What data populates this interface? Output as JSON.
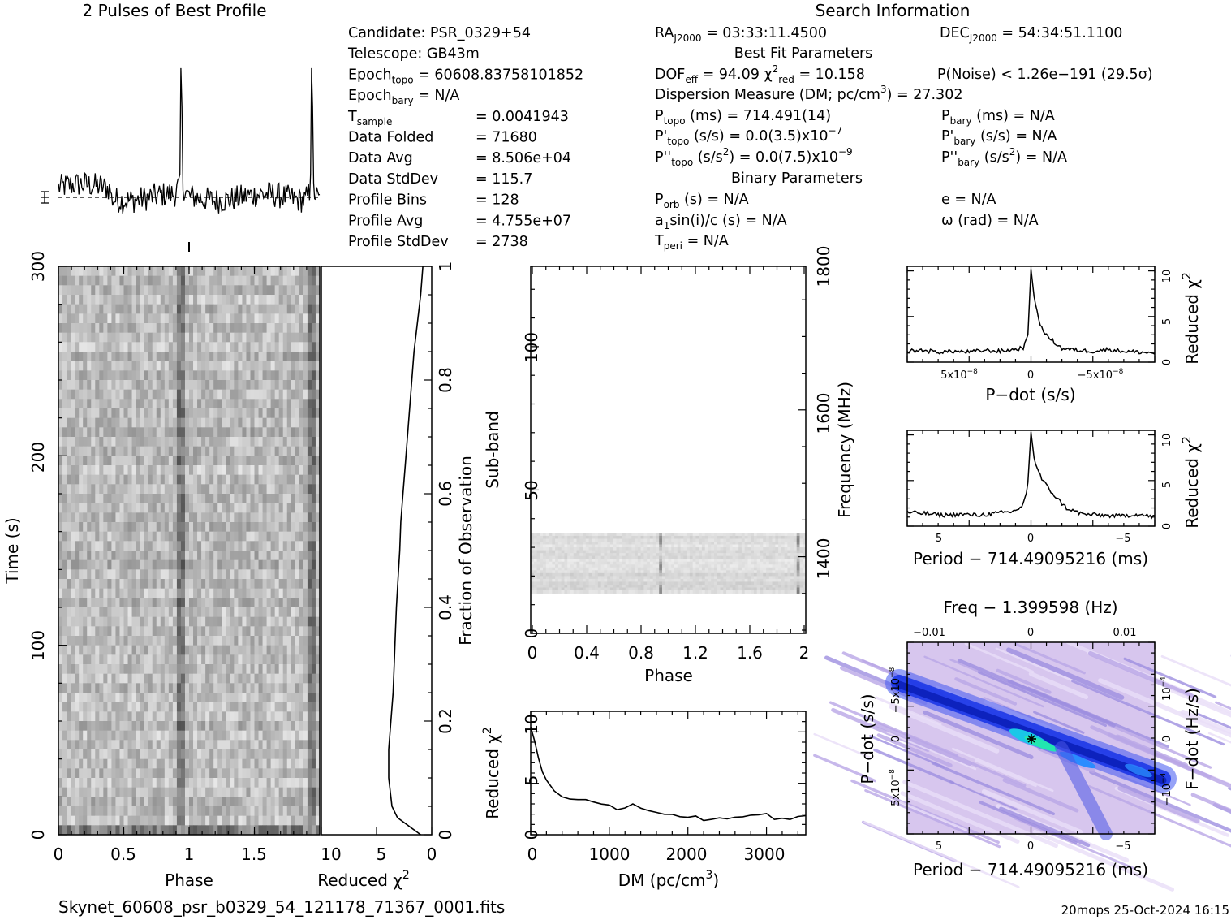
{
  "header": {
    "profile_title": "2 Pulses of Best Profile",
    "search_title": "Search Information",
    "best_fit_title": "Best Fit Parameters",
    "binary_title": "Binary Parameters"
  },
  "left_info": [
    {
      "label": "Candidate:  PSR_0329+54",
      "sub": "",
      "value": ""
    },
    {
      "label": "Telescope:  GB43m",
      "sub": "",
      "value": ""
    },
    {
      "label": "Epoch",
      "sub": "topo",
      "value": "= 60608.83758101852"
    },
    {
      "label": "Epoch",
      "sub": "bary",
      "value": "= N/A"
    },
    {
      "label": "T",
      "sub": "sample",
      "value": "=    0.0041943"
    },
    {
      "label": "Data Folded",
      "sub": "",
      "value": "=    71680"
    },
    {
      "label": "Data Avg",
      "sub": "",
      "value": "=    8.506e+04"
    },
    {
      "label": "Data StdDev",
      "sub": "",
      "value": "=    115.7"
    },
    {
      "label": "Profile Bins",
      "sub": "",
      "value": "=    128"
    },
    {
      "label": "Profile Avg",
      "sub": "",
      "value": "=    4.755e+07"
    },
    {
      "label": "Profile StdDev",
      "sub": "",
      "value": "=    2738"
    }
  ],
  "mid_info": {
    "ra": "= 03:33:11.4500",
    "dec": "= 54:34:51.1100",
    "dof": "= 94.09",
    "chi_red": "= 10.158",
    "pnoise": "P(Noise) < 1.26e−191   (29.5σ)",
    "dm": "Dispersion Measure (DM; pc/cm",
    "dm_value": ") = 27.302",
    "ptopo": "(ms) =  714.491(14)",
    "pdot_topo": "(s/s) = 0.0(3.5)x10",
    "pdot_topo_exp": "−7",
    "pddot_topo": "(s/s",
    "pddot_topo_val": ") = 0.0(7.5)x10",
    "pddot_topo_exp": "−9",
    "pbary": "(ms) = N/A",
    "pdot_bary": "(s/s) = N/A",
    "pddot_bary": "(s/s",
    "pddot_bary_val": ") = N/A",
    "porb": "(s) = N/A",
    "a1": "sin(i)/c (s) = N/A",
    "tperi": "= N/A",
    "ecc": "e = N/A",
    "omega": "ω (rad) = N/A"
  },
  "panels": {
    "time_phase": {
      "ylabel": "Time (s)",
      "xlabel": "Phase",
      "yticks": [
        "0",
        "100",
        "200",
        "300"
      ],
      "xticks": [
        "0",
        "0.5",
        "1",
        "1.5"
      ]
    },
    "chi_vs_time": {
      "xlabel": "Reduced χ",
      "xticks": [
        "10",
        "5",
        "0"
      ],
      "right_label": "Fraction of Observation",
      "rticks": [
        "0",
        "0.2",
        "0.4",
        "0.6",
        "0.8",
        "1"
      ]
    },
    "subband": {
      "ylabel": "Sub-band",
      "xlabel": "Phase",
      "yticks": [
        "0",
        "50",
        "100"
      ],
      "xticks": [
        "0",
        "0.4",
        "0.8",
        "1.2",
        "1.6",
        "2"
      ],
      "right_label": "Frequency (MHz)",
      "rticks": [
        "1400",
        "1600",
        "1800"
      ]
    },
    "dm_chi": {
      "ylabel": "Reduced χ",
      "xlabel": "DM (pc/cm",
      "yticks": [
        "0",
        "5",
        "10"
      ],
      "xticks": [
        "0",
        "1000",
        "2000",
        "3000"
      ]
    },
    "pdot_chi": {
      "xlabel": "P−dot (s/s)",
      "xticks": [
        "5x10",
        "0",
        "−5x10"
      ],
      "xtick_exp": "−8",
      "right_label": "Reduced χ",
      "rticks": [
        "0",
        "5",
        "10"
      ]
    },
    "period_chi": {
      "xlabel": "Period − 714.49095216 (ms)",
      "xticks": [
        "5",
        "0",
        "−5"
      ],
      "right_label": "Reduced χ",
      "rticks": [
        "0",
        "5",
        "10"
      ]
    },
    "ppdot": {
      "top_label": "Freq − 1.399598 (Hz)",
      "top_ticks": [
        "−0.01",
        "0",
        "0.01"
      ],
      "xlabel": "Period − 714.49095216 (ms)",
      "xticks": [
        "5",
        "0",
        "−5"
      ],
      "ylabel": "P−dot (s/s)",
      "yticks": [
        "−5x10",
        "0",
        "5x10"
      ],
      "ytick_exp": "−8",
      "right_label": "F−dot (Hz/s)",
      "rticks": [
        "10",
        "0",
        "−10"
      ],
      "rtick_exp": "−4"
    }
  },
  "footer": {
    "filename": "Skynet_60608_psr_b0329_54_121178_71367_0001.fits",
    "stamp": "20mops 25-Oct-2024 16:15"
  },
  "chart_data": [
    {
      "type": "line",
      "name_ref": "profile",
      "description_ref": "header.profile_title",
      "x_range": [
        0,
        2
      ],
      "pulse_phases": [
        0.94,
        1.94
      ],
      "baseline_level": 0.0,
      "peak_level": 1.0
    },
    {
      "type": "heatmap",
      "title_ref": "panels.time_phase",
      "x_range": [
        0,
        2
      ],
      "y_range": [
        0,
        300
      ],
      "pulse_phase": 0.94
    },
    {
      "type": "line",
      "title_ref": "panels.chi_vs_time",
      "x_label": "Reduced chi^2",
      "x_range": [
        0,
        10
      ],
      "y_range": [
        0,
        1
      ],
      "x": [
        1.0,
        3.1,
        3.6,
        3.9,
        3.9,
        3.7,
        3.5,
        3.4,
        3.3,
        3.2,
        3.05,
        2.9,
        2.8,
        2.6,
        2.4,
        2.2,
        2.0,
        1.8,
        1.6,
        1.3,
        1.0,
        0.8
      ],
      "y": [
        0.0,
        0.03,
        0.05,
        0.1,
        0.15,
        0.2,
        0.25,
        0.3,
        0.35,
        0.4,
        0.45,
        0.5,
        0.55,
        0.6,
        0.65,
        0.7,
        0.75,
        0.8,
        0.85,
        0.9,
        0.95,
        1.0
      ]
    },
    {
      "type": "heatmap",
      "title_ref": "panels.subband",
      "x_range": [
        0,
        2
      ],
      "y_range": [
        0,
        128
      ],
      "band_rows": [
        14,
        35
      ],
      "pulse_phases": [
        0.94,
        1.94
      ]
    },
    {
      "type": "line",
      "title_ref": "panels.dm_chi",
      "x_range": [
        0,
        3500
      ],
      "y_range": [
        0,
        12
      ],
      "x": [
        0,
        50,
        100,
        150,
        200,
        300,
        400,
        500,
        600,
        700,
        800,
        900,
        1000,
        1100,
        1200,
        1300,
        1400,
        1500,
        1600,
        1700,
        1800,
        1900,
        2000,
        2100,
        2200,
        2300,
        2400,
        2500,
        2600,
        2700,
        2800,
        2900,
        3000,
        3100,
        3200,
        3300,
        3400,
        3500
      ],
      "y": [
        10.4,
        9.0,
        7.5,
        6.2,
        5.3,
        4.3,
        3.7,
        3.4,
        3.5,
        3.3,
        3.1,
        2.9,
        2.8,
        2.5,
        2.7,
        2.9,
        2.5,
        2.3,
        2.2,
        2.1,
        2.0,
        1.7,
        1.6,
        1.7,
        1.4,
        1.5,
        1.6,
        1.5,
        1.6,
        1.7,
        1.8,
        1.9,
        2.0,
        1.6,
        1.5,
        1.6,
        1.7,
        1.8
      ]
    },
    {
      "type": "line",
      "title_ref": "panels.pdot_chi",
      "x_range": [
        8,
        -8
      ],
      "y_range": [
        0,
        10.5
      ],
      "x": [
        8,
        7,
        6,
        5,
        4,
        3,
        2,
        1,
        0.5,
        0.2,
        0,
        -0.2,
        -0.5,
        -1,
        -2,
        -3,
        -4,
        -5,
        -6,
        -7,
        -8
      ],
      "y": [
        1.2,
        1.3,
        1.1,
        1.2,
        1.1,
        1.3,
        1.2,
        1.4,
        1.6,
        3.0,
        10.2,
        7.2,
        4.5,
        2.9,
        1.5,
        1.3,
        1.2,
        1.4,
        1.2,
        1.1,
        1.0
      ]
    },
    {
      "type": "line",
      "title_ref": "panels.period_chi",
      "x_range": [
        7,
        -7
      ],
      "y_range": [
        0,
        10.5
      ],
      "x": [
        7,
        6,
        5,
        4,
        3,
        2,
        1,
        0.5,
        0.2,
        0,
        -0.2,
        -0.6,
        -1,
        -1.5,
        -2,
        -2.5,
        -3,
        -4,
        -5,
        -6,
        -7
      ],
      "y": [
        1.5,
        1.4,
        1.2,
        1.3,
        1.2,
        1.4,
        1.6,
        2.2,
        4.0,
        10.3,
        7.1,
        5.2,
        4.1,
        3.0,
        2.0,
        1.6,
        1.3,
        1.2,
        1.1,
        1.3,
        1.0
      ]
    },
    {
      "type": "heatmap",
      "title_ref": "panels.ppdot",
      "x_range": [
        7,
        -7
      ],
      "y_range": [
        -9,
        9
      ],
      "peak": [
        0,
        0
      ]
    }
  ]
}
